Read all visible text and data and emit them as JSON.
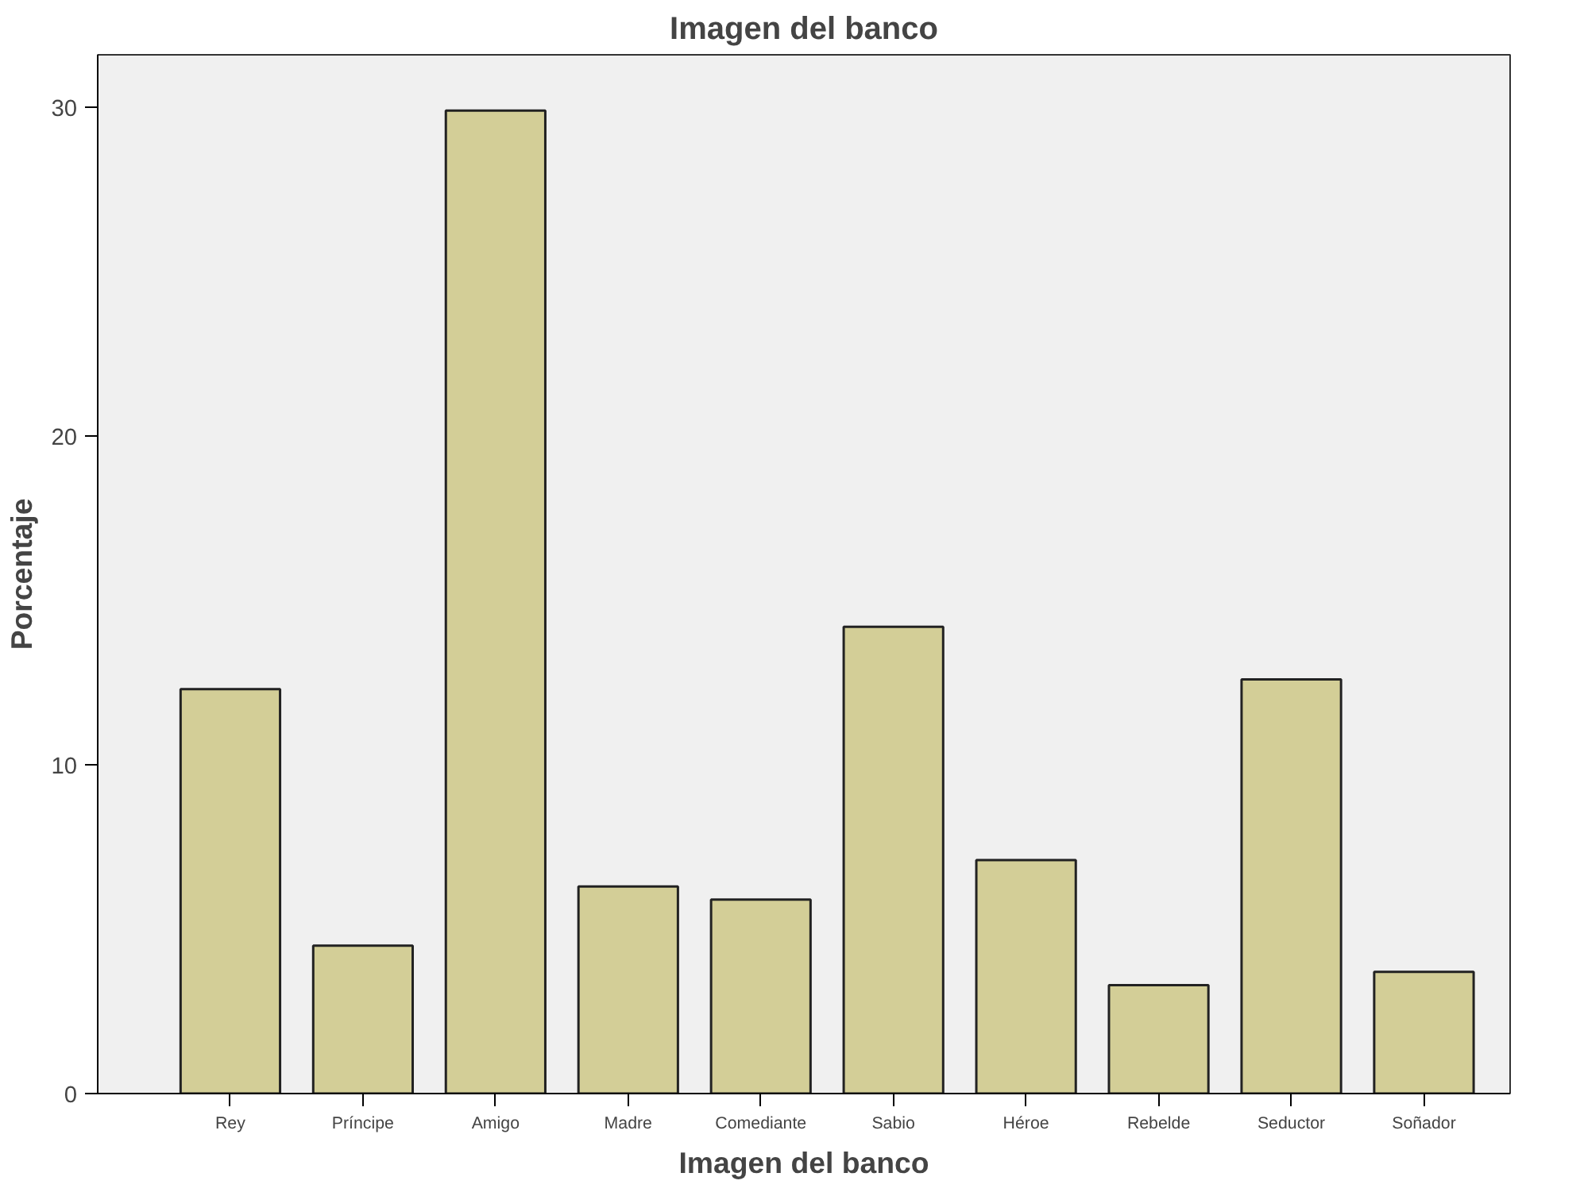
{
  "chart_data": {
    "type": "bar",
    "title": "Imagen del banco",
    "xlabel": "Imagen del banco",
    "ylabel": "Porcentaje",
    "categories": [
      "Rey",
      "Príncipe",
      "Amigo",
      "Madre",
      "Comediante",
      "Sabio",
      "Héroe",
      "Rebelde",
      "Seductor",
      "Soñador"
    ],
    "values": [
      12.3,
      4.5,
      29.9,
      6.3,
      5.9,
      14.2,
      7.1,
      3.3,
      12.6,
      3.7
    ],
    "color": "#d3ce97",
    "ylim": [
      0,
      31.6
    ],
    "yticks": [
      0,
      10,
      20,
      30
    ],
    "grid": false
  }
}
